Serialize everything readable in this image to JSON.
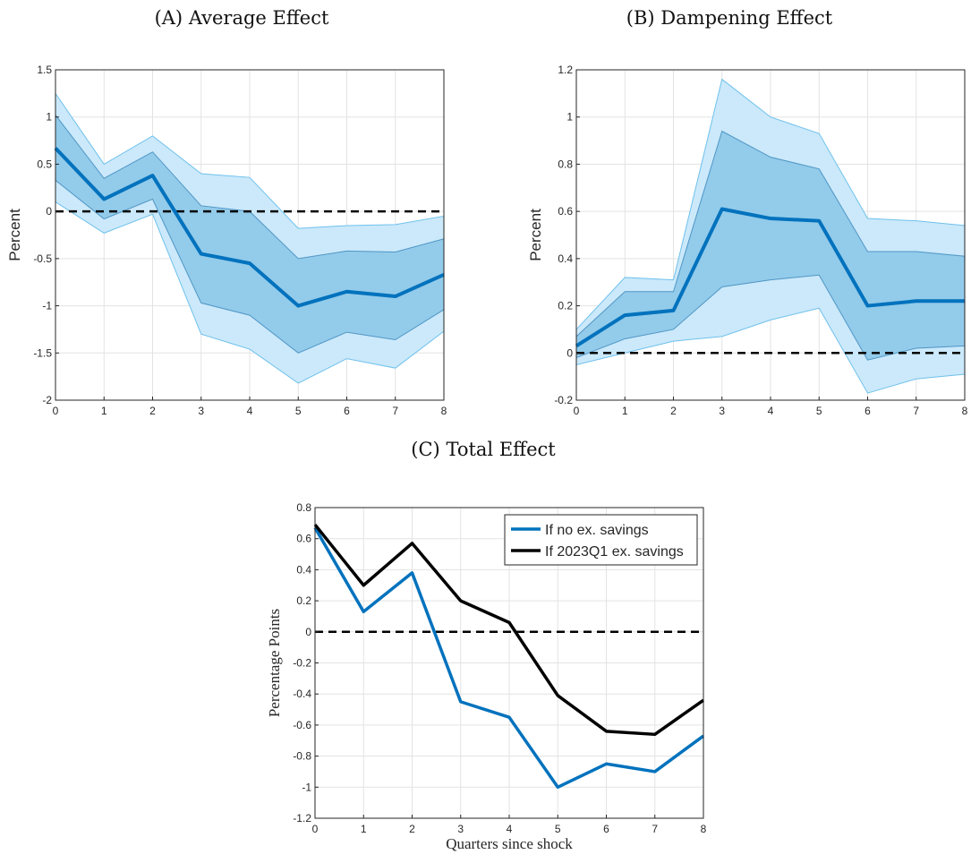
{
  "chart_data": [
    {
      "id": "A",
      "type": "line",
      "title_prefix": "(A)",
      "title": "Average Effect",
      "xlabel": "Quarters since shock",
      "ylabel": "Percent",
      "xlim": [
        0,
        8
      ],
      "ylim": [
        -2,
        1.5
      ],
      "x_ticks": [
        0,
        1,
        2,
        3,
        4,
        5,
        6,
        7,
        8
      ],
      "y_ticks": [
        -2,
        -1.5,
        -1,
        -0.5,
        0,
        0.5,
        1,
        1.5
      ],
      "grid": true,
      "x": [
        0,
        1,
        2,
        3,
        4,
        5,
        6,
        7,
        8
      ],
      "series": [
        {
          "role": "point_estimate",
          "color": "#0072BD",
          "values": [
            0.67,
            0.13,
            0.38,
            -0.45,
            -0.55,
            -1.0,
            -0.85,
            -0.9,
            -0.67
          ]
        },
        {
          "role": "band_outer_upper",
          "values": [
            1.25,
            0.5,
            0.8,
            0.4,
            0.36,
            -0.18,
            -0.15,
            -0.14,
            -0.05
          ]
        },
        {
          "role": "band_outer_lower",
          "values": [
            0.1,
            -0.23,
            -0.03,
            -1.3,
            -1.46,
            -1.82,
            -1.56,
            -1.66,
            -1.27
          ]
        },
        {
          "role": "band_inner_upper",
          "values": [
            1.02,
            0.35,
            0.63,
            0.06,
            0.0,
            -0.5,
            -0.42,
            -0.43,
            -0.29
          ]
        },
        {
          "role": "band_inner_lower",
          "values": [
            0.33,
            -0.08,
            0.13,
            -0.97,
            -1.1,
            -1.5,
            -1.28,
            -1.36,
            -1.04
          ]
        }
      ],
      "zero_line": true
    },
    {
      "id": "B",
      "type": "line",
      "title_prefix": "(B)",
      "title": "Dampening Effect",
      "xlabel": "Quarters since shock",
      "ylabel": "Percent",
      "xlim": [
        0,
        8
      ],
      "ylim": [
        -0.2,
        1.2
      ],
      "x_ticks": [
        0,
        1,
        2,
        3,
        4,
        5,
        6,
        7,
        8
      ],
      "y_ticks": [
        -0.2,
        0,
        0.2,
        0.4,
        0.6,
        0.8,
        1,
        1.2
      ],
      "grid": true,
      "x": [
        0,
        1,
        2,
        3,
        4,
        5,
        6,
        7,
        8
      ],
      "series": [
        {
          "role": "point_estimate",
          "color": "#0072BD",
          "values": [
            0.03,
            0.16,
            0.18,
            0.61,
            0.57,
            0.56,
            0.2,
            0.22,
            0.22
          ]
        },
        {
          "role": "band_outer_upper",
          "values": [
            0.1,
            0.32,
            0.31,
            1.16,
            1.0,
            0.93,
            0.57,
            0.56,
            0.54
          ]
        },
        {
          "role": "band_outer_lower",
          "values": [
            -0.05,
            0.0,
            0.05,
            0.07,
            0.14,
            0.19,
            -0.17,
            -0.11,
            -0.09
          ]
        },
        {
          "role": "band_inner_upper",
          "values": [
            0.07,
            0.26,
            0.26,
            0.94,
            0.83,
            0.78,
            0.43,
            0.43,
            0.41
          ]
        },
        {
          "role": "band_inner_lower",
          "values": [
            -0.02,
            0.06,
            0.1,
            0.28,
            0.31,
            0.33,
            -0.03,
            0.02,
            0.03
          ]
        }
      ],
      "zero_line": true
    },
    {
      "id": "C",
      "type": "line",
      "title_prefix": "(C)",
      "title": "Total Effect",
      "xlabel": "Quarters since shock",
      "ylabel": "Percentage Points",
      "xlim": [
        0,
        8
      ],
      "ylim": [
        -1.2,
        0.8
      ],
      "x_ticks": [
        0,
        1,
        2,
        3,
        4,
        5,
        6,
        7,
        8
      ],
      "y_ticks": [
        -1.2,
        -1,
        -0.8,
        -0.6,
        -0.4,
        -0.2,
        0,
        0.2,
        0.4,
        0.6,
        0.8
      ],
      "grid": true,
      "legend": "top-right",
      "x": [
        0,
        1,
        2,
        3,
        4,
        5,
        6,
        7,
        8
      ],
      "series": [
        {
          "name": "If no ex. savings",
          "color": "#0072BD",
          "values": [
            0.67,
            0.13,
            0.38,
            -0.45,
            -0.55,
            -1.0,
            -0.85,
            -0.9,
            -0.67
          ]
        },
        {
          "name": "If 2023Q1 ex. savings",
          "color": "#000000",
          "values": [
            0.69,
            0.3,
            0.57,
            0.2,
            0.06,
            -0.41,
            -0.64,
            -0.66,
            -0.44
          ]
        }
      ],
      "zero_line": true
    }
  ]
}
